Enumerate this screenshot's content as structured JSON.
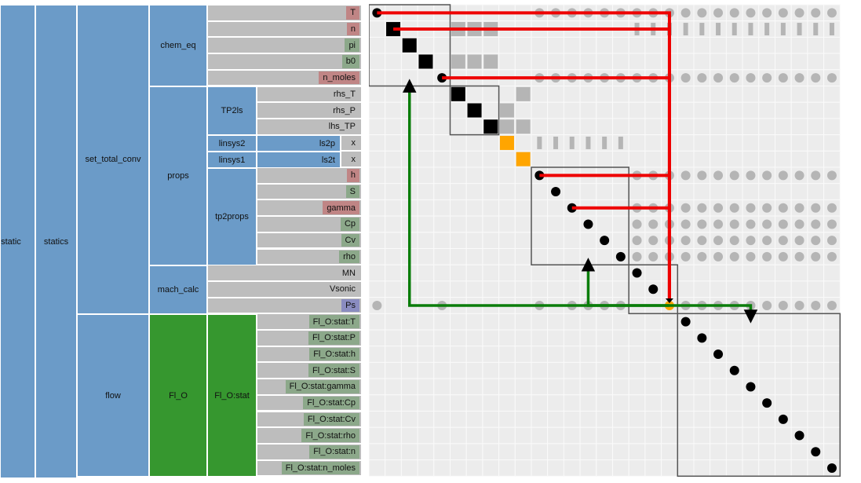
{
  "tree": {
    "root_label": "_static",
    "statics_label": "statics",
    "set_total_conv_label": "set_total_conv",
    "flow_label": "flow",
    "chem_eq_label": "chem_eq",
    "props_label": "props",
    "mach_calc_label": "mach_calc",
    "fl_o_label": "Fl_O",
    "tp2ls_label": "TP2ls",
    "linsys2_label": "linsys2",
    "linsys1_label": "linsys1",
    "tp2props_label": "tp2props",
    "fl_o_stat_label": "Fl_O:stat",
    "ls2p_label": "ls2p",
    "ls2t_label": "ls2t"
  },
  "variables": [
    {
      "label": "T",
      "type": "output"
    },
    {
      "label": "n",
      "type": "output"
    },
    {
      "label": "pi",
      "type": "input"
    },
    {
      "label": "b0",
      "type": "input"
    },
    {
      "label": "n_moles",
      "type": "output"
    },
    {
      "label": "rhs_T",
      "type": "plain"
    },
    {
      "label": "rhs_P",
      "type": "plain"
    },
    {
      "label": "lhs_TP",
      "type": "plain"
    },
    {
      "label": "x",
      "type": "plain"
    },
    {
      "label": "x",
      "type": "plain"
    },
    {
      "label": "h",
      "type": "output"
    },
    {
      "label": "S",
      "type": "input"
    },
    {
      "label": "gamma",
      "type": "output"
    },
    {
      "label": "Cp",
      "type": "input"
    },
    {
      "label": "Cv",
      "type": "input"
    },
    {
      "label": "rho",
      "type": "input"
    },
    {
      "label": "MN",
      "type": "plain"
    },
    {
      "label": "Vsonic",
      "type": "plain"
    },
    {
      "label": "Ps",
      "type": "unknown"
    },
    {
      "label": "Fl_O:stat:T",
      "type": "input"
    },
    {
      "label": "Fl_O:stat:P",
      "type": "input"
    },
    {
      "label": "Fl_O:stat:h",
      "type": "input"
    },
    {
      "label": "Fl_O:stat:S",
      "type": "input"
    },
    {
      "label": "Fl_O:stat:gamma",
      "type": "input"
    },
    {
      "label": "Fl_O:stat:Cp",
      "type": "input"
    },
    {
      "label": "Fl_O:stat:Cv",
      "type": "input"
    },
    {
      "label": "Fl_O:stat:rho",
      "type": "input"
    },
    {
      "label": "Fl_O:stat:n",
      "type": "input"
    },
    {
      "label": "Fl_O:stat:n_moles",
      "type": "input"
    }
  ],
  "colors": {
    "group": "#6b9bc8",
    "flow_group": "#36972f",
    "row": "#bdbdbd",
    "output_tag": "#c08585",
    "input_tag": "#8ca88a",
    "unknown_tag": "#8a8cc0",
    "upstream_arrow": "#ee0000",
    "downstream_arrow": "#0a7d0a",
    "highlight": "#ffa500"
  },
  "matrix": {
    "size": 29,
    "diagonal_types": [
      "dot",
      "block",
      "block",
      "block",
      "dot",
      "block",
      "block",
      "block",
      "highlight",
      "highlight",
      "dot",
      "dot",
      "dot",
      "dot",
      "dot",
      "dot",
      "dot",
      "dot",
      "highlight",
      "dot",
      "dot",
      "dot",
      "dot",
      "dot",
      "dot",
      "dot",
      "dot",
      "dot",
      "dot"
    ],
    "groups": [
      [
        0,
        4
      ],
      [
        5,
        7
      ],
      [
        10,
        15
      ],
      [
        16,
        18
      ],
      [
        19,
        28
      ]
    ],
    "gray_dots": [
      [
        0,
        [
          10,
          11,
          12,
          13,
          14,
          15,
          16,
          17,
          18,
          19,
          20,
          21,
          22,
          23,
          24,
          25,
          26,
          27,
          28
        ]
      ],
      [
        4,
        [
          10,
          11,
          12,
          13,
          14,
          15,
          16,
          17,
          18,
          19,
          20,
          21,
          22,
          23,
          24,
          25,
          26,
          27,
          28
        ]
      ],
      [
        10,
        [
          16,
          17,
          18,
          19,
          20,
          21,
          22,
          23,
          24,
          25,
          26,
          27,
          28
        ]
      ],
      [
        12,
        [
          16,
          17,
          18,
          19,
          20,
          21,
          22,
          23,
          24,
          25,
          26,
          27,
          28
        ]
      ],
      [
        13,
        [
          16,
          17,
          18,
          19,
          20,
          21,
          22,
          23,
          24,
          25,
          26,
          27,
          28
        ]
      ],
      [
        14,
        [
          16,
          17,
          18,
          19,
          20,
          21,
          22,
          23,
          24,
          25,
          26,
          27,
          28
        ]
      ],
      [
        15,
        [
          16,
          17,
          18,
          19,
          20,
          21,
          22,
          23,
          24,
          25,
          26,
          27,
          28
        ]
      ],
      [
        18,
        [
          0,
          4,
          10,
          12,
          13,
          14,
          15,
          19,
          20,
          21,
          22,
          23,
          24,
          25,
          26,
          27,
          28
        ]
      ]
    ],
    "gray_bars": [
      [
        1,
        [
          5,
          6,
          7,
          16,
          17,
          18,
          19,
          20,
          21,
          22,
          23,
          24,
          25,
          26,
          27,
          28
        ]
      ],
      [
        8,
        [
          10,
          11,
          12,
          13,
          14,
          15
        ]
      ]
    ],
    "gray_squares": [
      [
        1,
        5
      ],
      [
        1,
        6
      ],
      [
        1,
        7
      ],
      [
        3,
        5
      ],
      [
        3,
        6
      ],
      [
        3,
        7
      ],
      [
        5,
        9
      ],
      [
        6,
        8
      ],
      [
        7,
        8
      ],
      [
        7,
        9
      ]
    ],
    "arrows_up": [
      [
        0,
        18
      ],
      [
        1,
        18
      ],
      [
        4,
        18
      ],
      [
        10,
        18
      ],
      [
        12,
        18
      ]
    ],
    "arrows_down": [
      [
        18,
        2
      ],
      [
        18,
        13
      ],
      [
        18,
        23
      ]
    ]
  }
}
